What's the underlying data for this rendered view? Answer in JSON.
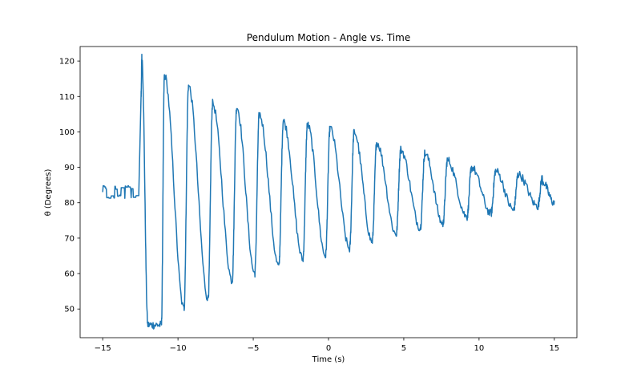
{
  "chart_data": {
    "type": "line",
    "title": "Pendulum Motion - Angle vs. Time",
    "xlabel": "Time (s)",
    "ylabel": "θ (Degrees)",
    "xlim": [
      -16.5,
      16.5
    ],
    "ylim": [
      41.9,
      124.1
    ],
    "xticks": [
      -15,
      -10,
      -5,
      0,
      5,
      10,
      15
    ],
    "xtick_labels": [
      "−15",
      "−10",
      "−5",
      "0",
      "5",
      "10",
      "15"
    ],
    "yticks": [
      50,
      60,
      70,
      80,
      90,
      100,
      110,
      120
    ],
    "ytick_labels": [
      "50",
      "60",
      "70",
      "80",
      "90",
      "100",
      "110",
      "120"
    ],
    "grid": false,
    "series": [
      {
        "color": "#1f77b4",
        "x_range": [
          -15.0,
          15.0
        ],
        "segments": [
          {
            "kind": "noise",
            "x": [
              -15.0,
              -12.6
            ],
            "center": 83.0,
            "amplitude": 1.8
          },
          {
            "kind": "rise",
            "x": [
              -12.6,
              -12.45
            ],
            "y": [
              83.0,
              110.5
            ]
          },
          {
            "kind": "oscillation",
            "x": [
              -12.45,
              15.0
            ],
            "center": 83.0,
            "period": 1.57,
            "first_peak_time": -12.45,
            "peak_amplitude_start": 38.0,
            "decay_time_constant": 17.0,
            "final_amplitude": 3.0,
            "noise_amplitude": 1.2
          }
        ],
        "peaks": [
          {
            "x": -12.4,
            "y": 121.0
          },
          {
            "x": -10.9,
            "y": 116.0
          },
          {
            "x": -9.3,
            "y": 113.0
          },
          {
            "x": -7.7,
            "y": 108.0
          },
          {
            "x": -6.1,
            "y": 107.0
          },
          {
            "x": -4.6,
            "y": 105.0
          },
          {
            "x": -3.0,
            "y": 103.0
          },
          {
            "x": -1.4,
            "y": 102.0
          },
          {
            "x": 0.1,
            "y": 101.0
          },
          {
            "x": 1.7,
            "y": 100.0
          },
          {
            "x": 3.2,
            "y": 97.0
          },
          {
            "x": 4.8,
            "y": 95.0
          },
          {
            "x": 6.4,
            "y": 94.0
          },
          {
            "x": 7.9,
            "y": 92.0
          },
          {
            "x": 9.5,
            "y": 90.0
          },
          {
            "x": 11.1,
            "y": 89.0
          },
          {
            "x": 12.6,
            "y": 88.0
          },
          {
            "x": 14.2,
            "y": 87.0
          }
        ],
        "troughs": [
          {
            "x": -12.0,
            "y": 45.5
          },
          {
            "x": -11.1,
            "y": 45.5
          },
          {
            "x": -9.6,
            "y": 50.0
          },
          {
            "x": -8.0,
            "y": 53.0
          },
          {
            "x": -6.4,
            "y": 58.0
          },
          {
            "x": -4.9,
            "y": 60.0
          },
          {
            "x": -3.3,
            "y": 62.0
          },
          {
            "x": -1.7,
            "y": 64.0
          },
          {
            "x": -0.2,
            "y": 65.0
          },
          {
            "x": 1.4,
            "y": 67.0
          },
          {
            "x": 2.9,
            "y": 69.0
          },
          {
            "x": 4.5,
            "y": 71.0
          },
          {
            "x": 6.1,
            "y": 73.0
          },
          {
            "x": 7.6,
            "y": 74.0
          },
          {
            "x": 9.2,
            "y": 76.0
          },
          {
            "x": 10.8,
            "y": 77.0
          },
          {
            "x": 12.3,
            "y": 78.0
          },
          {
            "x": 13.9,
            "y": 79.0
          }
        ]
      }
    ]
  }
}
